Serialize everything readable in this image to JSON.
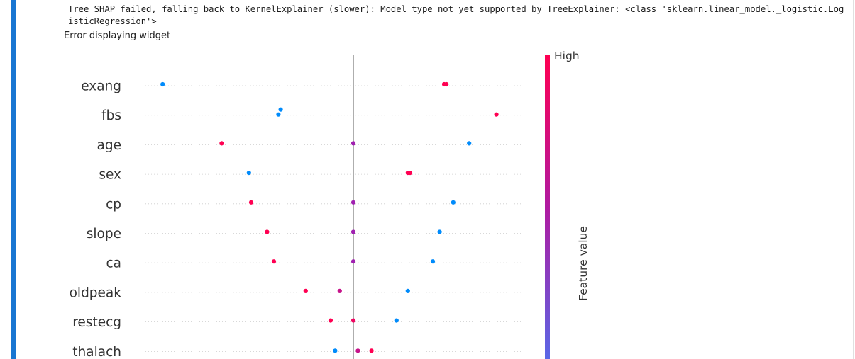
{
  "output": {
    "stderr_text": "Tree SHAP failed, falling back to KernelExplainer (slower): Model type not yet supported by TreeExplainer: <class 'sklearn.linear_model._logistic.LogisticRegression'>",
    "widget_error": "Error displaying widget"
  },
  "chart_data": {
    "type": "scatter",
    "subtype": "shap-beeswarm",
    "title": "",
    "xlabel": "",
    "features": [
      "exang",
      "fbs",
      "age",
      "sex",
      "cp",
      "slope",
      "ca",
      "oldpeak",
      "restecg",
      "thalach"
    ],
    "xlim": [
      -1.0,
      1.0
    ],
    "points": [
      {
        "feature": "exang",
        "shap": -0.84,
        "value": 0.0
      },
      {
        "feature": "exang",
        "shap": 0.4,
        "value": 1.0
      },
      {
        "feature": "exang",
        "shap": 0.41,
        "value": 1.0
      },
      {
        "feature": "fbs",
        "shap": -0.32,
        "value": 0.0
      },
      {
        "feature": "fbs",
        "shap": -0.33,
        "value": 0.0
      },
      {
        "feature": "fbs",
        "shap": 0.63,
        "value": 1.0
      },
      {
        "feature": "age",
        "shap": -0.58,
        "value": 1.0
      },
      {
        "feature": "age",
        "shap": 0.0,
        "value": 0.5
      },
      {
        "feature": "age",
        "shap": 0.51,
        "value": 0.0
      },
      {
        "feature": "sex",
        "shap": -0.46,
        "value": 0.0
      },
      {
        "feature": "sex",
        "shap": 0.24,
        "value": 1.0
      },
      {
        "feature": "sex",
        "shap": 0.25,
        "value": 1.0
      },
      {
        "feature": "cp",
        "shap": -0.45,
        "value": 1.0
      },
      {
        "feature": "cp",
        "shap": 0.0,
        "value": 0.5
      },
      {
        "feature": "cp",
        "shap": 0.44,
        "value": 0.0
      },
      {
        "feature": "slope",
        "shap": -0.38,
        "value": 1.0
      },
      {
        "feature": "slope",
        "shap": 0.0,
        "value": 0.5
      },
      {
        "feature": "slope",
        "shap": 0.38,
        "value": 0.0
      },
      {
        "feature": "ca",
        "shap": -0.35,
        "value": 1.0
      },
      {
        "feature": "ca",
        "shap": 0.0,
        "value": 0.5
      },
      {
        "feature": "ca",
        "shap": 0.35,
        "value": 0.0
      },
      {
        "feature": "oldpeak",
        "shap": -0.21,
        "value": 1.0
      },
      {
        "feature": "oldpeak",
        "shap": -0.06,
        "value": 0.7
      },
      {
        "feature": "oldpeak",
        "shap": 0.24,
        "value": 0.0
      },
      {
        "feature": "restecg",
        "shap": -0.1,
        "value": 1.0
      },
      {
        "feature": "restecg",
        "shap": 0.0,
        "value": 0.92
      },
      {
        "feature": "restecg",
        "shap": 0.19,
        "value": 0.0
      },
      {
        "feature": "thalach",
        "shap": -0.08,
        "value": 0.0
      },
      {
        "feature": "thalach",
        "shap": 0.02,
        "value": 0.7
      },
      {
        "feature": "thalach",
        "shap": 0.08,
        "value": 1.0
      }
    ],
    "colorbar": {
      "high_label": "High",
      "axis_label": "Feature value",
      "low_color": "#008bfb",
      "high_color": "#ff0052",
      "mid_color": "#a020b0"
    },
    "zero_line_color": "#999999",
    "grid": "dotted horizontal per feature"
  }
}
